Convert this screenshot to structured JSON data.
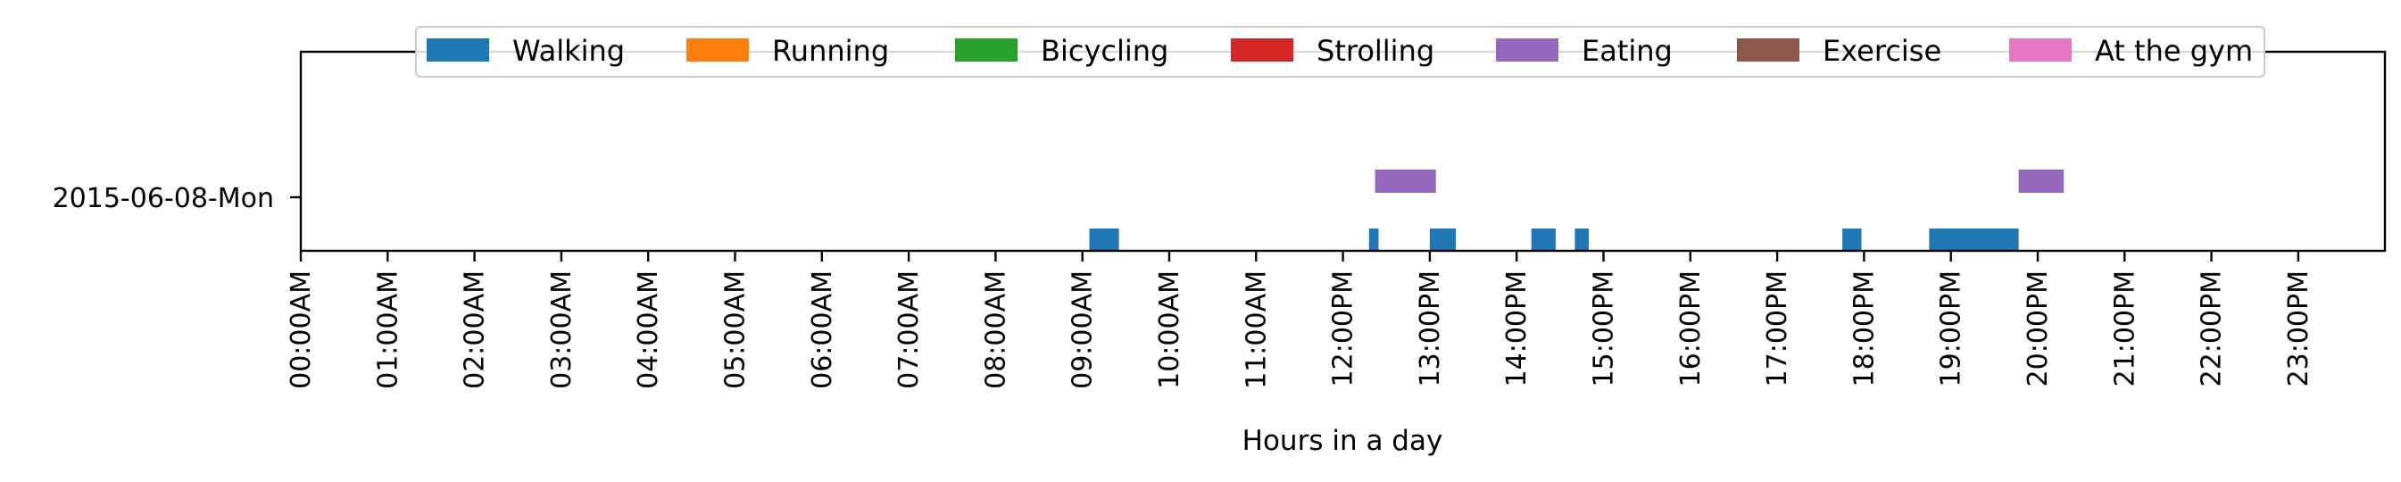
{
  "chart_data": {
    "type": "timeline",
    "xlabel": "Hours in a day",
    "xlim": [
      0,
      24
    ],
    "x_tick_labels": [
      "00:00AM",
      "01:00AM",
      "02:00AM",
      "03:00AM",
      "04:00AM",
      "05:00AM",
      "06:00AM",
      "07:00AM",
      "08:00AM",
      "09:00AM",
      "10:00AM",
      "11:00AM",
      "12:00PM",
      "13:00PM",
      "14:00PM",
      "15:00PM",
      "16:00PM",
      "17:00PM",
      "18:00PM",
      "19:00PM",
      "20:00PM",
      "21:00PM",
      "22:00PM",
      "23:00PM"
    ],
    "y_tick_labels": [
      "2015-06-08-Mon"
    ],
    "legend_position": "top-center",
    "categories": [
      {
        "name": "Walking",
        "color": "#1f77b4"
      },
      {
        "name": "Running",
        "color": "#ff7f0e"
      },
      {
        "name": "Bicycling",
        "color": "#2ca02c"
      },
      {
        "name": "Strolling",
        "color": "#d62728"
      },
      {
        "name": "Eating",
        "color": "#9467bd"
      },
      {
        "name": "Exercise",
        "color": "#8c564b"
      },
      {
        "name": "At the gym",
        "color": "#e377c2"
      }
    ],
    "segments": [
      {
        "activity": "Walking",
        "start": 9.08,
        "end": 9.42
      },
      {
        "activity": "Walking",
        "start": 12.3,
        "end": 12.41
      },
      {
        "activity": "Walking",
        "start": 13.0,
        "end": 13.3
      },
      {
        "activity": "Walking",
        "start": 14.17,
        "end": 14.45
      },
      {
        "activity": "Walking",
        "start": 14.67,
        "end": 14.83
      },
      {
        "activity": "Walking",
        "start": 17.75,
        "end": 17.97
      },
      {
        "activity": "Walking",
        "start": 18.75,
        "end": 19.78
      },
      {
        "activity": "Eating",
        "start": 12.37,
        "end": 13.07
      },
      {
        "activity": "Eating",
        "start": 19.78,
        "end": 20.3
      }
    ]
  }
}
